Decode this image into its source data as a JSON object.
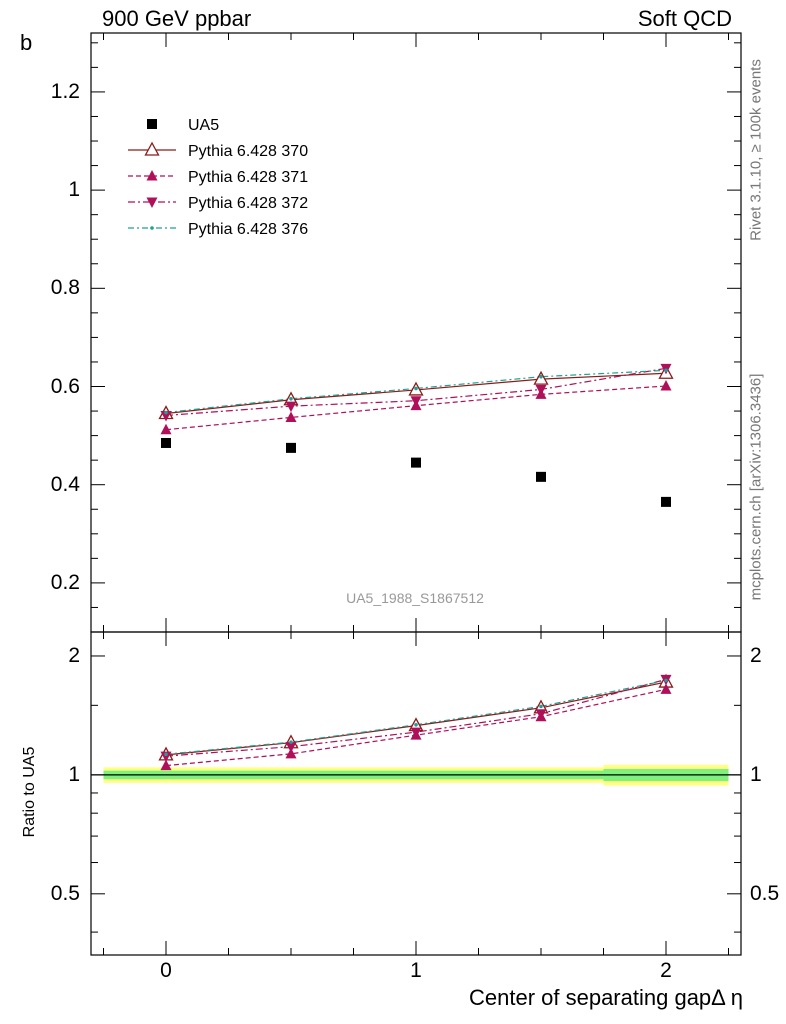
{
  "header": {
    "left_label": "900 GeV ppbar",
    "right_label": "Soft QCD"
  },
  "side_text": {
    "top": "Rivet 3.1.10, ≥ 100k events",
    "bottom": "mcplots.cern.ch [arXiv:1306.3436]"
  },
  "analysis_id": "UA5_1988_S1867512",
  "chart_data": {
    "type": "scatter",
    "main": {
      "ylabel": "b",
      "ylim": [
        0.1,
        1.32
      ],
      "yticks": [
        0.2,
        0.4,
        0.6,
        0.8,
        1.0,
        1.2
      ],
      "ytick_labels": [
        "0.2",
        "0.4",
        "0.6",
        "0.8",
        "1",
        "1.2"
      ]
    },
    "ratio": {
      "ylabel": "Ratio to UA5",
      "scale": "log",
      "ylim": [
        0.35,
        2.3
      ],
      "yticks": [
        0.5,
        1,
        2
      ],
      "ytick_labels": [
        "0.5",
        "1",
        "2"
      ],
      "bands": [
        {
          "x0": -0.25,
          "x1": 1.75,
          "yellow": [
            0.955,
            1.045
          ],
          "green": [
            0.975,
            1.025
          ]
        },
        {
          "x0": 1.75,
          "x1": 2.25,
          "yellow": [
            0.94,
            1.06
          ],
          "green": [
            0.965,
            1.035
          ]
        }
      ]
    },
    "xlabel": "Center of separating gapΔ η",
    "xlim": [
      -0.3,
      2.3
    ],
    "xticks": [
      0,
      1,
      2
    ],
    "xtick_labels": [
      "0",
      "1",
      "2"
    ],
    "x": [
      0,
      0.5,
      1,
      1.5,
      2
    ],
    "data_series": {
      "name": "UA5",
      "values": [
        0.485,
        0.475,
        0.445,
        0.416,
        0.365
      ],
      "color": "#000000"
    },
    "series": [
      {
        "name": "Pythia 6.428 370",
        "values": [
          0.545,
          0.573,
          0.593,
          0.615,
          0.627
        ],
        "color": "#8b1a1a",
        "marker": "triangle-up-open",
        "dash": ""
      },
      {
        "name": "Pythia 6.428 371",
        "values": [
          0.512,
          0.537,
          0.561,
          0.584,
          0.601
        ],
        "color": "#b0105a",
        "marker": "triangle-up",
        "dash": "5,3"
      },
      {
        "name": "Pythia 6.428 372",
        "values": [
          0.541,
          0.56,
          0.571,
          0.594,
          0.637
        ],
        "color": "#b0105a",
        "marker": "triangle-down",
        "dash": "7,3,2,3"
      },
      {
        "name": "Pythia 6.428 376",
        "values": [
          0.547,
          0.575,
          0.596,
          0.62,
          0.633
        ],
        "color": "#20a090",
        "marker": "dot",
        "dash": "6,3,2,3"
      }
    ]
  }
}
